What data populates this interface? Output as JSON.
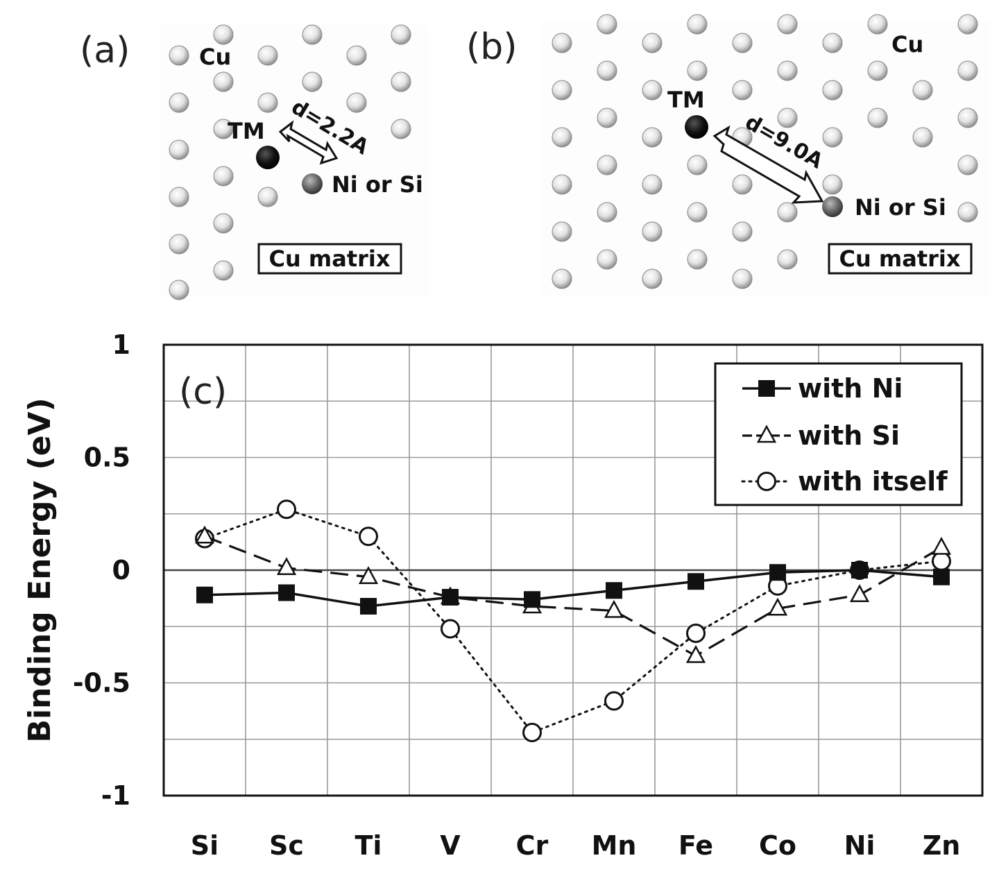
{
  "panel_a": {
    "letter": "(a)",
    "host_label": "Cu",
    "tm_label": "TM",
    "distance_label": "d=2.2A",
    "partner_label": "Ni or Si",
    "matrix_label": "Cu matrix"
  },
  "panel_b": {
    "letter": "(b)",
    "host_label": "Cu",
    "tm_label": "TM",
    "distance_label": "d=9.0A",
    "partner_label": "Ni or Si",
    "matrix_label": "Cu matrix"
  },
  "chart_data": {
    "type": "line",
    "panel_letter": "(c)",
    "title": "",
    "xlabel": "",
    "ylabel": "Binding Energy (eV)",
    "ylim": [
      -1,
      1
    ],
    "yticks": [
      {
        "value": 1,
        "label": "1"
      },
      {
        "value": 0.5,
        "label": "0.5"
      },
      {
        "value": 0,
        "label": "0"
      },
      {
        "value": -0.5,
        "label": "-0.5"
      },
      {
        "value": -1,
        "label": "-1"
      }
    ],
    "grid": true,
    "legend_position": "top-right",
    "categories": [
      "Si",
      "Sc",
      "Ti",
      "V",
      "Cr",
      "Mn",
      "Fe",
      "Co",
      "Ni",
      "Zn"
    ],
    "series": [
      {
        "name": "with Ni",
        "marker": "filled-square",
        "line": "solid",
        "values": [
          -0.11,
          -0.1,
          -0.16,
          -0.12,
          -0.13,
          -0.09,
          -0.05,
          -0.01,
          0.0,
          -0.03
        ]
      },
      {
        "name": "with Si",
        "marker": "open-triangle",
        "line": "dashed",
        "values": [
          0.15,
          0.01,
          -0.03,
          -0.12,
          -0.16,
          -0.18,
          -0.38,
          -0.17,
          -0.11,
          0.1
        ]
      },
      {
        "name": "with itself",
        "marker": "open-circle",
        "line": "dotted",
        "values": [
          0.14,
          0.27,
          0.15,
          -0.26,
          -0.72,
          -0.58,
          -0.28,
          -0.07,
          0.0,
          0.04
        ]
      }
    ]
  }
}
